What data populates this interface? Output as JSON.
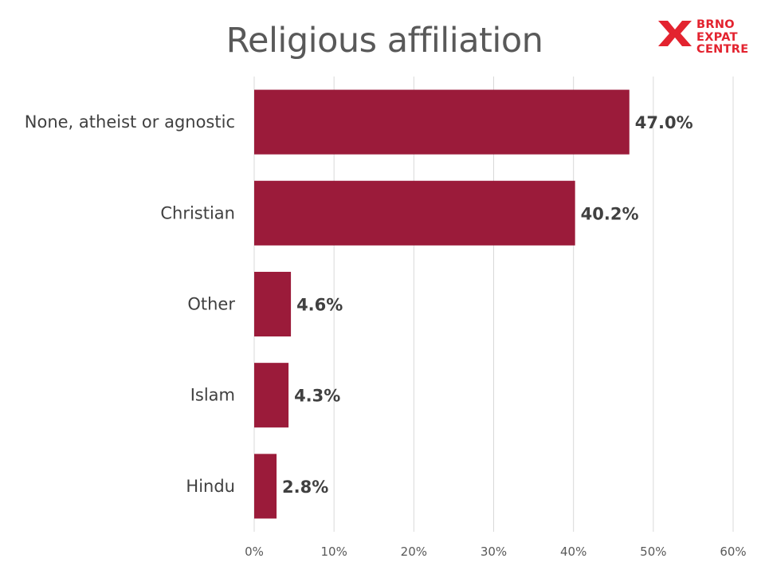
{
  "logo": {
    "lines": [
      "BRNO",
      "EXPAT",
      "CENTRE"
    ],
    "color": "#e3232f"
  },
  "chart_data": {
    "type": "bar",
    "orientation": "horizontal",
    "title": "Religious affiliation",
    "categories": [
      "None, atheist or agnostic",
      "Christian",
      "Other",
      "Islam",
      "Hindu"
    ],
    "values": [
      47.0,
      40.2,
      4.6,
      4.3,
      2.8
    ],
    "value_labels": [
      "47.0%",
      "40.2%",
      "4.6%",
      "4.3%",
      "2.8%"
    ],
    "xlim": [
      0,
      60
    ],
    "xticks": [
      0,
      10,
      20,
      30,
      40,
      50,
      60
    ],
    "xtick_labels": [
      "0%",
      "10%",
      "20%",
      "30%",
      "40%",
      "50%",
      "60%"
    ],
    "xlabel": "",
    "ylabel": "",
    "grid": true,
    "legend": "none",
    "bar_color": "#9b1b3a",
    "grid_color": "#d9d9d9"
  }
}
